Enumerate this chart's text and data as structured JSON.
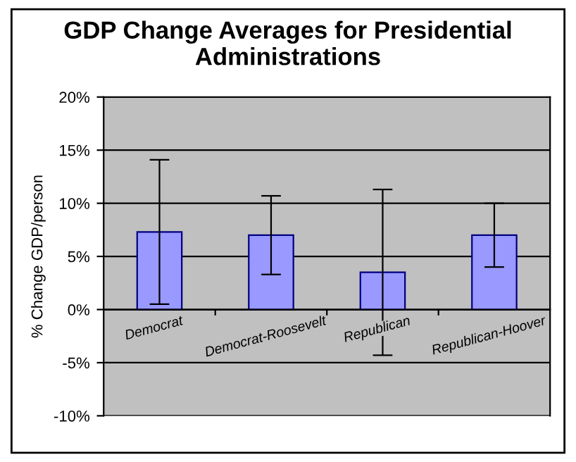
{
  "chart_data": {
    "type": "bar",
    "title": "GDP Change Averages for Presidential Administrations",
    "ylabel": "% Change GDP/person",
    "categories": [
      "Democrat",
      "Democrat-Roosevelt",
      "Republican",
      "Republican-Hoover"
    ],
    "values": [
      7.3,
      7.0,
      3.5,
      7.0
    ],
    "errors": [
      6.8,
      3.7,
      7.8,
      3.0
    ],
    "color": "#9999ff",
    "ylim": [
      -10,
      20
    ],
    "yticks": [
      {
        "value": -10,
        "label": "-10%"
      },
      {
        "value": -5,
        "label": "-5%"
      },
      {
        "value": 0,
        "label": "0%"
      },
      {
        "value": 5,
        "label": "5%"
      },
      {
        "value": 10,
        "label": "10%"
      },
      {
        "value": 15,
        "label": "15%"
      },
      {
        "value": 20,
        "label": "20%"
      }
    ],
    "grid": "y"
  }
}
